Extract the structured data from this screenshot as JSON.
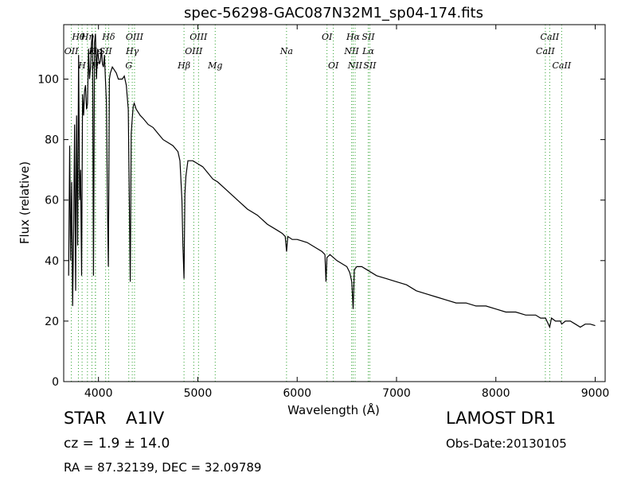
{
  "chart_data": {
    "type": "line",
    "title": "spec-56298-GAC087N32M1_sp04-174.fits",
    "xlabel": "Wavelength (Å)",
    "ylabel": "Flux (relative)",
    "xlim": [
      3650,
      9100
    ],
    "ylim": [
      0,
      118
    ],
    "xticks": [
      4000,
      5000,
      6000,
      7000,
      8000,
      9000
    ],
    "yticks": [
      0,
      20,
      40,
      60,
      80,
      100
    ],
    "grid": false,
    "series": [
      {
        "line_color": "#000000",
        "x": [
          3700,
          3710,
          3720,
          3730,
          3740,
          3750,
          3760,
          3770,
          3780,
          3790,
          3800,
          3810,
          3820,
          3830,
          3840,
          3850,
          3860,
          3870,
          3880,
          3890,
          3900,
          3910,
          3920,
          3930,
          3940,
          3950,
          3960,
          3970,
          3980,
          3990,
          4000,
          4010,
          4020,
          4030,
          4040,
          4050,
          4060,
          4070,
          4080,
          4090,
          4100,
          4110,
          4120,
          4140,
          4160,
          4180,
          4200,
          4220,
          4240,
          4260,
          4280,
          4300,
          4320,
          4330,
          4340,
          4350,
          4360,
          4380,
          4400,
          4420,
          4450,
          4500,
          4550,
          4600,
          4650,
          4700,
          4750,
          4800,
          4820,
          4840,
          4850,
          4861,
          4870,
          4880,
          4900,
          4950,
          5000,
          5050,
          5100,
          5150,
          5200,
          5300,
          5400,
          5500,
          5600,
          5700,
          5800,
          5850,
          5880,
          5893,
          5905,
          5950,
          6000,
          6100,
          6200,
          6250,
          6280,
          6290,
          6300,
          6330,
          6400,
          6450,
          6500,
          6530,
          6550,
          6563,
          6575,
          6600,
          6650,
          6700,
          6800,
          6900,
          7000,
          7100,
          7200,
          7300,
          7400,
          7500,
          7600,
          7700,
          7800,
          7900,
          8000,
          8100,
          8200,
          8300,
          8400,
          8450,
          8500,
          8542,
          8560,
          8600,
          8650,
          8662,
          8700,
          8750,
          8800,
          8850,
          8900,
          8950,
          9000
        ],
        "y": [
          35,
          78,
          40,
          66,
          25,
          50,
          85,
          30,
          88,
          45,
          108,
          60,
          70,
          35,
          95,
          88,
          96,
          98,
          90,
          92,
          110,
          100,
          104,
          112,
          115,
          35,
          112,
          115,
          100,
          110,
          107,
          105,
          106,
          110,
          105,
          104,
          108,
          100,
          92,
          60,
          38,
          100,
          102,
          104,
          103,
          102,
          100,
          100,
          100,
          101,
          98,
          90,
          33,
          82,
          87,
          91,
          92,
          90,
          89,
          88,
          87,
          85,
          84,
          82,
          80,
          79,
          78,
          76,
          73,
          60,
          45,
          34,
          62,
          68,
          73,
          73,
          72,
          71,
          69,
          67,
          66,
          63,
          60,
          57,
          55,
          52,
          50,
          49,
          48,
          43,
          48,
          47,
          47,
          46,
          44,
          43,
          42,
          33,
          41,
          42,
          40,
          39,
          38,
          36,
          33,
          24,
          37,
          38,
          38,
          37,
          35,
          34,
          33,
          32,
          30,
          29,
          28,
          27,
          26,
          26,
          25,
          25,
          24,
          23,
          23,
          22,
          22,
          21,
          21,
          18,
          21,
          20,
          20,
          19,
          20,
          20,
          19,
          18,
          19,
          19,
          18.5
        ]
      }
    ],
    "line_markers": [
      {
        "label": "OII",
        "wl": 3727,
        "row": 2
      },
      {
        "label": "Hθ",
        "wl": 3798,
        "row": 1
      },
      {
        "label": "H",
        "wl": 3835,
        "row": 3
      },
      {
        "label": "Hη",
        "wl": 3889,
        "row": 1
      },
      {
        "label": "K",
        "wl": 3934,
        "row": 2
      },
      {
        "label": "H",
        "wl": 3969,
        "row": 3
      },
      {
        "label": "Hε",
        "wl": 3970,
        "row": 2
      },
      {
        "label": "SII",
        "wl": 4072,
        "row": 2
      },
      {
        "label": "Hδ",
        "wl": 4102,
        "row": 1
      },
      {
        "label": "G",
        "wl": 4305,
        "row": 3
      },
      {
        "label": "Hγ",
        "wl": 4340,
        "row": 2
      },
      {
        "label": "OIII",
        "wl": 4363,
        "row": 1
      },
      {
        "label": "Hβ",
        "wl": 4861,
        "row": 3
      },
      {
        "label": "OIII",
        "wl": 4959,
        "row": 2
      },
      {
        "label": "OIII",
        "wl": 5007,
        "row": 1
      },
      {
        "label": "Mg",
        "wl": 5175,
        "row": 3
      },
      {
        "label": "Na",
        "wl": 5893,
        "row": 2
      },
      {
        "label": "OI",
        "wl": 6300,
        "row": 1
      },
      {
        "label": "OI",
        "wl": 6364,
        "row": 3
      },
      {
        "label": "NII",
        "wl": 6548,
        "row": 2
      },
      {
        "label": "NII",
        "wl": 6583,
        "row": 3
      },
      {
        "label": "Hα",
        "wl": 6563,
        "row": 1
      },
      {
        "label": "SII",
        "wl": 6716,
        "row": 1
      },
      {
        "label": "Lα",
        "wl": 6716,
        "row": 2
      },
      {
        "label": "SII",
        "wl": 6731,
        "row": 3
      },
      {
        "label": "CaII",
        "wl": 8542,
        "row": 1
      },
      {
        "label": "CaII",
        "wl": 8498,
        "row": 2
      },
      {
        "label": "CaII",
        "wl": 8662,
        "row": 3
      }
    ]
  },
  "info": {
    "class_label": "STAR",
    "subclass": "A1IV",
    "cz": "cz = 1.9 ± 14.0",
    "radec": "RA = 87.32139, DEC = 32.09789",
    "survey": "LAMOST DR1",
    "obs_date": "Obs-Date:20130105"
  },
  "colors": {
    "spectrum": "#000000",
    "line_marker": "#2ca02c",
    "background": "#ffffff"
  }
}
